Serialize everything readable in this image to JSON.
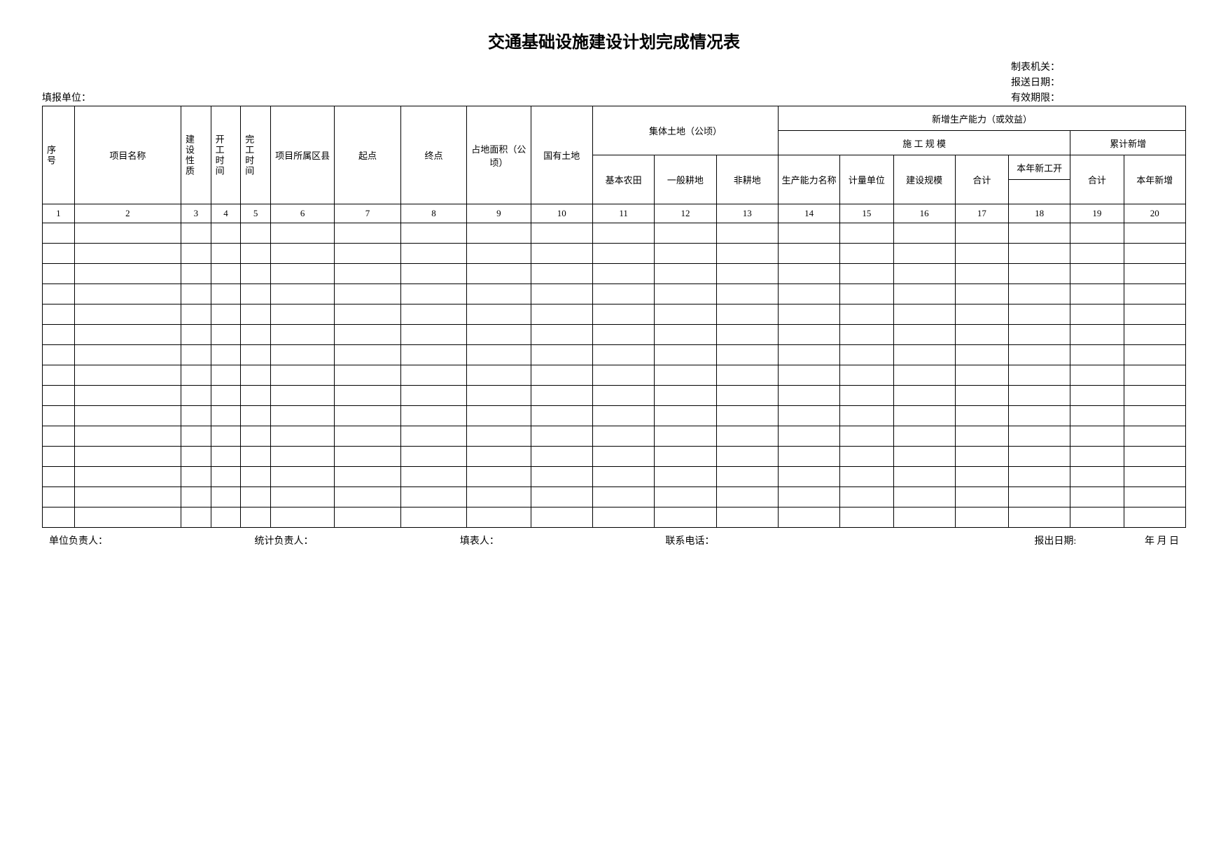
{
  "title": "交通基础设施建设计划完成情况表",
  "meta": {
    "org_label": "制表机关：",
    "send_date_label": "报送日期：",
    "fill_unit_label": "填报单位：",
    "valid_label": "有效期限："
  },
  "headers": {
    "seq": "序号",
    "project_name": "项目名称",
    "build_type": "建设性质",
    "start_time": "开工时间",
    "end_time": "完工时间",
    "area_belong": "项目所属区县",
    "start_point": "起点",
    "end_point": "终点",
    "land_area": "占地面积（公顷）",
    "state_land": "国有土地",
    "collective_land": "集体土地（公顷）",
    "basic_farm": "基本农田",
    "normal_farm": "一般耕地",
    "non_farm": "非耕地",
    "new_capacity": "新增生产能力（或效益）",
    "construction_scale": "施 工 规 模",
    "capacity_name": "生产能力名称",
    "measure_unit": "计量单位",
    "build_scale": "建设规模",
    "sum": "合计",
    "cumulative_new": "累计新增",
    "this_year_start": "本年新工开",
    "this_year_new": "本年新增"
  },
  "column_numbers": [
    "1",
    "2",
    "3",
    "4",
    "5",
    "6",
    "7",
    "8",
    "9",
    "10",
    "11",
    "12",
    "13",
    "14",
    "15",
    "16",
    "17",
    "18",
    "19",
    "20"
  ],
  "footer": {
    "unit_head": "单位负责人：",
    "stat_head": "统计负责人：",
    "filler": "填表人：",
    "phone": "联系电话：",
    "report_date": "报出日期:",
    "date_suffix": "年  月  日"
  },
  "data_rows_count": 15
}
